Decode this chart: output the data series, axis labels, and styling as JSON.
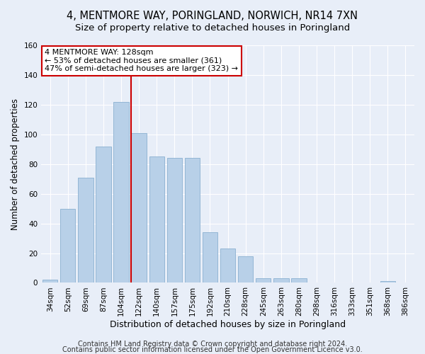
{
  "title": "4, MENTMORE WAY, PORINGLAND, NORWICH, NR14 7XN",
  "subtitle": "Size of property relative to detached houses in Poringland",
  "xlabel": "Distribution of detached houses by size in Poringland",
  "ylabel": "Number of detached properties",
  "categories": [
    "34sqm",
    "52sqm",
    "69sqm",
    "87sqm",
    "104sqm",
    "122sqm",
    "140sqm",
    "157sqm",
    "175sqm",
    "192sqm",
    "210sqm",
    "228sqm",
    "245sqm",
    "263sqm",
    "280sqm",
    "298sqm",
    "316sqm",
    "333sqm",
    "351sqm",
    "368sqm",
    "386sqm"
  ],
  "values": [
    2,
    50,
    71,
    92,
    122,
    101,
    85,
    84,
    84,
    34,
    23,
    18,
    3,
    3,
    3,
    0,
    0,
    0,
    0,
    1,
    0
  ],
  "bar_color": "#b8d0e8",
  "bar_edge_color": "#8ab0d0",
  "vline_x_index": 5,
  "vline_color": "#cc0000",
  "annotation_text": "4 MENTMORE WAY: 128sqm\n← 53% of detached houses are smaller (361)\n47% of semi-detached houses are larger (323) →",
  "annotation_box_color": "#ffffff",
  "annotation_box_edge_color": "#cc0000",
  "ylim": [
    0,
    160
  ],
  "yticks": [
    0,
    20,
    40,
    60,
    80,
    100,
    120,
    140,
    160
  ],
  "footer1": "Contains HM Land Registry data © Crown copyright and database right 2024.",
  "footer2": "Contains public sector information licensed under the Open Government Licence v3.0.",
  "background_color": "#e8eef8",
  "plot_background": "#e8eef8",
  "grid_color": "#ffffff",
  "title_fontsize": 10.5,
  "subtitle_fontsize": 9.5,
  "xlabel_fontsize": 9,
  "ylabel_fontsize": 8.5,
  "tick_fontsize": 7.5,
  "annotation_fontsize": 8,
  "footer_fontsize": 7
}
